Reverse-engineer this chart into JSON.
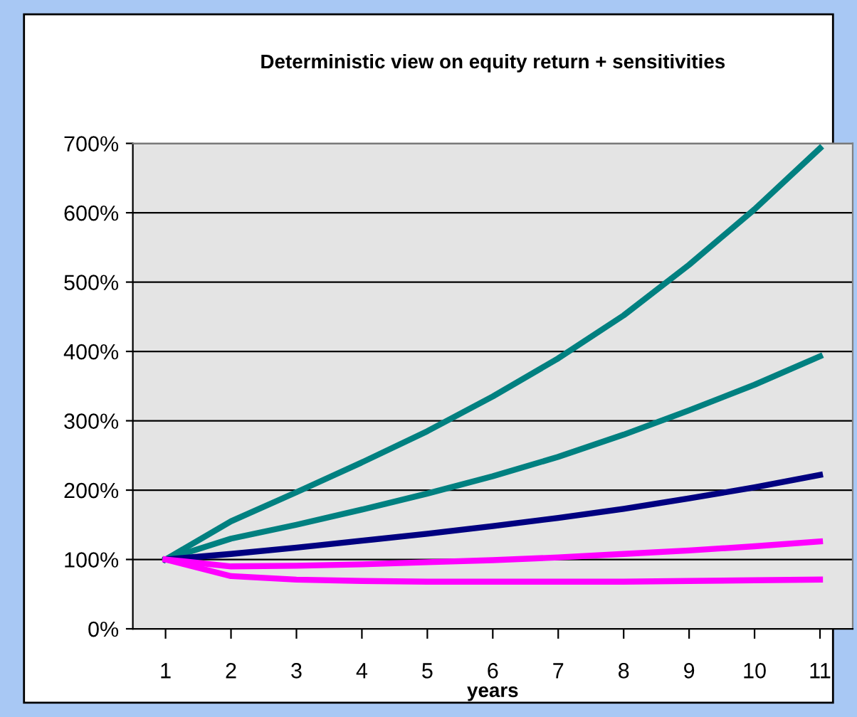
{
  "chart_data": {
    "type": "line",
    "title": "Deterministic view on equity return + sensitivities",
    "xlabel": "years",
    "categories": [
      "1",
      "2",
      "3",
      "4",
      "5",
      "6",
      "7",
      "8",
      "9",
      "10",
      "11"
    ],
    "series": [
      {
        "color": "#008080",
        "values": [
          100,
          155,
          197,
          240,
          285,
          335,
          390,
          452,
          525,
          605,
          693
        ]
      },
      {
        "color": "#008080",
        "values": [
          100,
          130,
          150,
          172,
          195,
          220,
          248,
          280,
          315,
          352,
          393
        ]
      },
      {
        "color": "#000080",
        "values": [
          100,
          108,
          117,
          127,
          137,
          148,
          160,
          173,
          188,
          204,
          222
        ]
      },
      {
        "color": "#ff00ff",
        "values": [
          100,
          90,
          91,
          93,
          96,
          99,
          103,
          108,
          113,
          119,
          126
        ]
      },
      {
        "color": "#ff00ff",
        "values": [
          100,
          76,
          71,
          69,
          68,
          68,
          68,
          68,
          69,
          70,
          71
        ]
      }
    ],
    "ylim": [
      0,
      700
    ],
    "yticks": [
      {
        "value": 0,
        "label": "0%"
      },
      {
        "value": 100,
        "label": "100%"
      },
      {
        "value": 200,
        "label": "200%"
      },
      {
        "value": 300,
        "label": "300%"
      },
      {
        "value": 400,
        "label": "400%"
      },
      {
        "value": 500,
        "label": "500%"
      },
      {
        "value": 600,
        "label": "600%"
      },
      {
        "value": 700,
        "label": "700%"
      }
    ],
    "grid": "y",
    "legend": false,
    "marker": "none",
    "line_style": "solid"
  }
}
